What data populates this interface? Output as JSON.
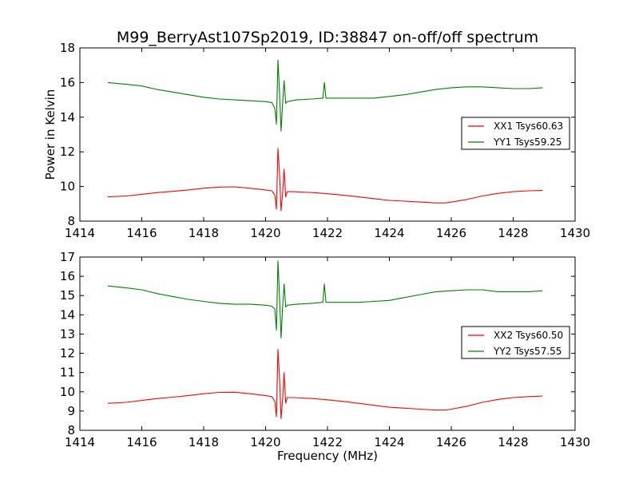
{
  "title": "M99_BerryAst107Sp2019, ID:38847 on-off/off spectrum",
  "chart_data": [
    {
      "type": "line",
      "xlabel": "",
      "ylabel": "Power in Kelvin",
      "xlim": [
        1414,
        1430
      ],
      "ylim": [
        8,
        18
      ],
      "xticks": [
        "1414",
        "1416",
        "1418",
        "1420",
        "1422",
        "1424",
        "1426",
        "1428",
        "1430"
      ],
      "yticks": [
        "8",
        "10",
        "12",
        "14",
        "16",
        "18"
      ],
      "legend_position": "right",
      "series": [
        {
          "name": "XX1 Tsys60.63",
          "color": "#ff0000",
          "x": [
            1414.9,
            1415.5,
            1416.0,
            1416.5,
            1417.0,
            1417.5,
            1418.0,
            1418.5,
            1419.0,
            1419.5,
            1420.0,
            1420.2,
            1420.3,
            1420.35,
            1420.4,
            1420.45,
            1420.5,
            1420.55,
            1420.6,
            1420.65,
            1420.7,
            1420.9,
            1421.5,
            1421.9,
            1422.5,
            1423.0,
            1423.5,
            1424.0,
            1424.5,
            1425.0,
            1425.5,
            1425.8,
            1426.0,
            1426.5,
            1427.0,
            1427.5,
            1428.0,
            1428.5,
            1428.95
          ],
          "values": [
            9.4,
            9.45,
            9.55,
            9.65,
            9.72,
            9.8,
            9.9,
            9.97,
            9.98,
            9.9,
            9.8,
            9.75,
            9.5,
            8.7,
            12.2,
            10.8,
            8.6,
            9.6,
            11.0,
            9.4,
            9.7,
            9.7,
            9.65,
            9.6,
            9.5,
            9.4,
            9.3,
            9.2,
            9.15,
            9.1,
            9.05,
            9.05,
            9.1,
            9.25,
            9.45,
            9.6,
            9.7,
            9.75,
            9.78
          ]
        },
        {
          "name": "YY1 Tsys59.25",
          "color": "#008000",
          "x": [
            1414.9,
            1415.5,
            1416.0,
            1416.5,
            1417.0,
            1417.5,
            1418.0,
            1418.5,
            1419.0,
            1419.5,
            1420.0,
            1420.2,
            1420.3,
            1420.35,
            1420.4,
            1420.45,
            1420.5,
            1420.55,
            1420.6,
            1420.65,
            1420.7,
            1421.0,
            1421.5,
            1421.85,
            1421.9,
            1421.95,
            1422.5,
            1423.0,
            1423.5,
            1424.0,
            1424.5,
            1425.0,
            1425.5,
            1426.0,
            1426.5,
            1427.0,
            1427.5,
            1428.0,
            1428.5,
            1428.95
          ],
          "values": [
            16.0,
            15.9,
            15.8,
            15.6,
            15.45,
            15.3,
            15.15,
            15.05,
            15.0,
            14.95,
            14.9,
            14.85,
            14.5,
            13.6,
            17.3,
            15.5,
            13.2,
            14.8,
            16.1,
            14.8,
            14.9,
            15.0,
            15.05,
            15.1,
            16.0,
            15.1,
            15.1,
            15.1,
            15.1,
            15.2,
            15.3,
            15.45,
            15.6,
            15.7,
            15.75,
            15.75,
            15.7,
            15.65,
            15.65,
            15.7
          ]
        }
      ]
    },
    {
      "type": "line",
      "xlabel": "Frequency (MHz)",
      "ylabel": "",
      "xlim": [
        1414,
        1430
      ],
      "ylim": [
        8,
        17
      ],
      "xticks": [
        "1414",
        "1416",
        "1418",
        "1420",
        "1422",
        "1424",
        "1426",
        "1428",
        "1430"
      ],
      "yticks": [
        "8",
        "9",
        "10",
        "11",
        "12",
        "13",
        "14",
        "15",
        "16",
        "17"
      ],
      "legend_position": "right",
      "series": [
        {
          "name": "XX2 Tsys60.50",
          "color": "#ff0000",
          "x": [
            1414.9,
            1415.5,
            1416.0,
            1416.5,
            1417.0,
            1417.5,
            1418.0,
            1418.5,
            1419.0,
            1419.5,
            1420.0,
            1420.2,
            1420.3,
            1420.35,
            1420.4,
            1420.45,
            1420.5,
            1420.55,
            1420.6,
            1420.65,
            1420.7,
            1420.9,
            1421.5,
            1421.9,
            1422.5,
            1423.0,
            1423.5,
            1424.0,
            1424.5,
            1425.0,
            1425.5,
            1425.8,
            1426.0,
            1426.5,
            1427.0,
            1427.5,
            1428.0,
            1428.5,
            1428.95
          ],
          "values": [
            9.4,
            9.45,
            9.55,
            9.65,
            9.72,
            9.8,
            9.9,
            9.97,
            9.98,
            9.9,
            9.8,
            9.75,
            9.5,
            8.7,
            12.2,
            10.8,
            8.6,
            9.6,
            11.0,
            9.4,
            9.7,
            9.7,
            9.65,
            9.6,
            9.5,
            9.4,
            9.3,
            9.2,
            9.15,
            9.1,
            9.05,
            9.05,
            9.1,
            9.25,
            9.45,
            9.6,
            9.7,
            9.75,
            9.78
          ]
        },
        {
          "name": "YY2 Tsys57.55",
          "color": "#008000",
          "x": [
            1414.9,
            1415.5,
            1416.0,
            1416.5,
            1417.0,
            1417.5,
            1418.0,
            1418.5,
            1419.0,
            1419.5,
            1420.0,
            1420.2,
            1420.3,
            1420.35,
            1420.4,
            1420.45,
            1420.5,
            1420.55,
            1420.6,
            1420.65,
            1420.7,
            1421.0,
            1421.5,
            1421.85,
            1421.9,
            1421.95,
            1422.5,
            1423.0,
            1423.5,
            1424.0,
            1424.5,
            1425.0,
            1425.5,
            1426.0,
            1426.5,
            1427.0,
            1427.5,
            1428.0,
            1428.5,
            1428.95
          ],
          "values": [
            15.5,
            15.4,
            15.3,
            15.1,
            14.95,
            14.8,
            14.7,
            14.6,
            14.55,
            14.55,
            14.5,
            14.45,
            14.3,
            13.2,
            16.8,
            15.0,
            12.8,
            14.4,
            15.6,
            14.4,
            14.5,
            14.55,
            14.6,
            14.65,
            15.6,
            14.65,
            14.65,
            14.65,
            14.7,
            14.75,
            14.9,
            15.05,
            15.2,
            15.25,
            15.3,
            15.3,
            15.2,
            15.2,
            15.2,
            15.25
          ]
        }
      ]
    }
  ]
}
